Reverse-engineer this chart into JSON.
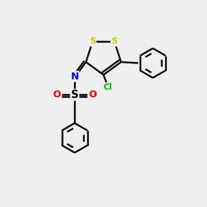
{
  "background_color": "#eeeeee",
  "bond_color": "#000000",
  "S_color": "#cccc00",
  "N_color": "#0000ff",
  "O_color": "#ff0000",
  "Cl_color": "#00bb00",
  "bond_width": 1.8,
  "figsize": [
    3.0,
    3.0
  ],
  "dpi": 100,
  "xlim": [
    0,
    10
  ],
  "ylim": [
    0,
    10
  ]
}
